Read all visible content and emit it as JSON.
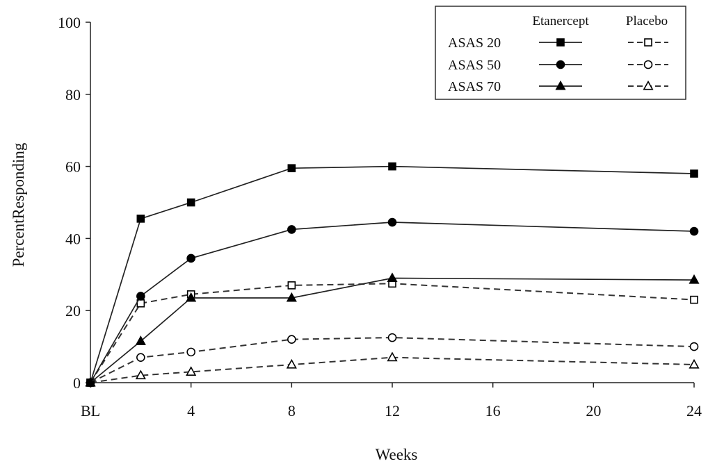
{
  "chart_data": {
    "type": "line",
    "xlabel": "Weeks",
    "ylabel": "PercentResponding",
    "ylim": [
      0,
      100
    ],
    "xlim": [
      0,
      24
    ],
    "yticks": [
      0,
      20,
      40,
      60,
      80,
      100
    ],
    "xticks": [
      {
        "value": 0,
        "label": "BL"
      },
      {
        "value": 4,
        "label": "4"
      },
      {
        "value": 8,
        "label": "8"
      },
      {
        "value": 12,
        "label": "12"
      },
      {
        "value": 16,
        "label": "16"
      },
      {
        "value": 20,
        "label": "20"
      },
      {
        "value": 24,
        "label": "24"
      }
    ],
    "x": [
      0,
      2,
      4,
      8,
      12,
      24
    ],
    "legend": {
      "placement": "top-right",
      "col_headers": [
        "Etanercept",
        "Placebo"
      ],
      "row_labels": [
        "ASAS 20",
        "ASAS 50",
        "ASAS 70"
      ]
    },
    "series": [
      {
        "name": "ASAS 20",
        "group": "Etanercept",
        "marker": "square",
        "filled": true,
        "dashed": false,
        "values": [
          0,
          45.5,
          50,
          59.5,
          60,
          58
        ]
      },
      {
        "name": "ASAS 50",
        "group": "Etanercept",
        "marker": "circle",
        "filled": true,
        "dashed": false,
        "values": [
          0,
          24,
          34.5,
          42.5,
          44.5,
          42
        ]
      },
      {
        "name": "ASAS 70",
        "group": "Etanercept",
        "marker": "triangle",
        "filled": true,
        "dashed": false,
        "values": [
          0,
          11.5,
          23.5,
          23.5,
          29,
          28.5
        ]
      },
      {
        "name": "ASAS 20",
        "group": "Placebo",
        "marker": "square",
        "filled": false,
        "dashed": true,
        "values": [
          0,
          22,
          24.5,
          27,
          27.5,
          23
        ]
      },
      {
        "name": "ASAS 50",
        "group": "Placebo",
        "marker": "circle",
        "filled": false,
        "dashed": true,
        "values": [
          0,
          7,
          8.5,
          12,
          12.5,
          10
        ]
      },
      {
        "name": "ASAS 70",
        "group": "Placebo",
        "marker": "triangle",
        "filled": false,
        "dashed": true,
        "values": [
          0,
          2,
          3,
          5,
          7,
          5
        ]
      }
    ],
    "grid": false
  }
}
